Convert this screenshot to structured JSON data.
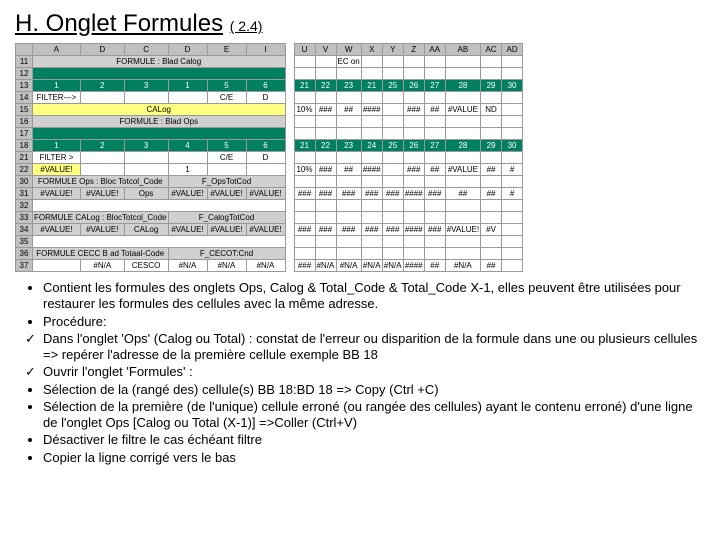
{
  "heading": {
    "main": "H. Onglet Formules",
    "sub": "( 2.4)"
  },
  "colors": {
    "green": "#008060",
    "yellow": "#ffff80",
    "gray": "#d0d0d0",
    "border": "#999999",
    "text": "#000000"
  },
  "columns_left": [
    "A",
    "D",
    "C",
    "D",
    "E",
    "I"
  ],
  "columns_right": [
    "U",
    "V",
    "W",
    "X",
    "Y",
    "Z",
    "AA",
    "AB",
    "AC",
    "AD"
  ],
  "rows": [
    {
      "n": "11",
      "l": "FORMULE : Blad Calog",
      "cls": "gray",
      "r": [
        "",
        "",
        "EC on",
        "",
        "",
        "",
        "",
        "",
        "",
        ""
      ]
    },
    {
      "n": "12",
      "l": "",
      "cls": "green",
      "r": [
        "",
        "",
        "",
        "",
        "",
        "",
        "",
        "",
        "",
        ""
      ]
    },
    {
      "n": "13",
      "cells": [
        "1",
        "2",
        "3",
        "1",
        "5",
        "6"
      ],
      "celcls": "green",
      "r": [
        "21",
        "22",
        "23",
        "21",
        "25",
        "26",
        "27",
        "28",
        "29",
        "30"
      ],
      "rcls": "green"
    },
    {
      "n": "14",
      "l": "FILTER--->",
      "sub": [
        "",
        "",
        "",
        "C/E",
        "D"
      ],
      "r": [
        "",
        "",
        "",
        "",
        "",
        "",
        "",
        "",
        "",
        ""
      ]
    },
    {
      "n": "15",
      "l": "CALog",
      "cls": "yellow",
      "r": [
        "10%",
        "###",
        "##",
        "####",
        "",
        "###",
        "##",
        "#VALUE",
        "ND",
        ""
      ]
    },
    {
      "n": "16",
      "l": "FORMULE : Blad Ops",
      "cls": "gray",
      "r": [
        "",
        "",
        "",
        "",
        "",
        "",
        "",
        "",
        "",
        ""
      ]
    },
    {
      "n": "17",
      "l": "",
      "cls": "green",
      "r": [
        "",
        "",
        "",
        "",
        "",
        "",
        "",
        "",
        "",
        ""
      ]
    },
    {
      "n": "18",
      "cells": [
        "1",
        "2",
        "3",
        "4",
        "5",
        "6"
      ],
      "celcls": "green",
      "r": [
        "21",
        "22",
        "23",
        "24",
        "25",
        "26",
        "27",
        "28",
        "29",
        "30"
      ],
      "rcls": "green"
    },
    {
      "n": "21",
      "l": "FILTER >",
      "sub": [
        "",
        "",
        "",
        "C/E",
        "D"
      ],
      "r": [
        "",
        "",
        "",
        "",
        "",
        "",
        "",
        "",
        "",
        ""
      ]
    },
    {
      "n": "22",
      "l": "#VALUE!",
      "cls": "yellow",
      "sub": [
        "",
        "",
        "1",
        "",
        ""
      ],
      "r": [
        "10%",
        "###",
        "##",
        "####",
        "",
        "###",
        "##",
        "#VALUE",
        "##",
        "#"
      ]
    },
    {
      "n": "30",
      "l": "FORMULE Ops : Bloc Totcol_Code",
      "sub3": "F_OpsTotCod",
      "cls": "gray",
      "r": [
        "",
        "",
        "",
        "",
        "",
        "",
        "",
        "",
        "",
        ""
      ]
    },
    {
      "n": "31",
      "cells": [
        "#VALUE!",
        "#VALUE!",
        "Ops",
        "#VALUE!",
        "#VALUE!",
        "#VALUE!"
      ],
      "celcls": "gray",
      "r": [
        "###",
        "###",
        "###",
        "###",
        "###",
        "####",
        "###",
        "##",
        "##",
        "#"
      ]
    },
    {
      "n": "32",
      "l": "",
      "r": [
        "",
        "",
        "",
        "",
        "",
        "",
        "",
        "",
        "",
        ""
      ]
    },
    {
      "n": "33",
      "l": "FORMULE CALog : BlocTotcol_Code",
      "sub3": "F_CalogTotCod",
      "cls": "gray",
      "r": [
        "",
        "",
        "",
        "",
        "",
        "",
        "",
        "",
        "",
        ""
      ]
    },
    {
      "n": "34",
      "cells": [
        "#VALUE!",
        "#VALUE!",
        "CALog",
        "#VALUE!",
        "#VALUE!",
        "#VALUE!"
      ],
      "celcls": "gray",
      "r": [
        "###",
        "###",
        "###",
        "###",
        "###",
        "####",
        "###",
        "#VALUE!",
        "#V",
        ""
      ]
    },
    {
      "n": "35",
      "l": "",
      "r": [
        "",
        "",
        "",
        "",
        "",
        "",
        "",
        "",
        "",
        ""
      ]
    },
    {
      "n": "36",
      "l": "FORMULE CECC B ad Totaal-Code",
      "sub3": "F_CECOT:Cnd",
      "cls": "gray",
      "r": [
        "",
        "",
        "",
        "",
        "",
        "",
        "",
        "",
        "",
        ""
      ]
    },
    {
      "n": "37",
      "cells": [
        "",
        "#N/A",
        "CESCO",
        "#N/A",
        "#N/A",
        "#N/A"
      ],
      "r": [
        "###",
        "#N/A",
        "#N/A",
        "#N/A",
        "#N/A",
        "####",
        "##",
        "#N/A",
        "##",
        ""
      ]
    }
  ],
  "bullets": [
    {
      "t": "dot",
      "text": "Contient les formules des onglets  Ops, Calog & Total_Code & Total_Code X-1, elles peuvent être utilisées pour restaurer les formules des cellules avec la même adresse."
    },
    {
      "t": "dot",
      "text": "Procédure:"
    },
    {
      "t": "check",
      "text": "Dans l'onglet 'Ops' (Calog ou Total) : constat de l'erreur ou disparition de la formule  dans une ou plusieurs cellules  => repérer l'adresse de la première cellule exemple BB 18"
    },
    {
      "t": "check",
      "text": "Ouvrir l'onglet  'Formules' :"
    },
    {
      "t": "dot",
      "text": "Sélection de la (rangé des) cellule(s) BB 18:BD 18 => Copy (Ctrl +C)"
    },
    {
      "t": "dot",
      "text": "Sélection de la première (de l'unique) cellule erroné (ou rangée des cellules) ayant le contenu erroné) d'une ligne de l'onglet Ops [Calog ou Total (X-1)]  =>Coller (Ctrl+V)"
    },
    {
      "t": "dot",
      "text": "Désactiver le filtre le cas échéant filtre"
    },
    {
      "t": "dot",
      "text": "Copier la ligne corrigé vers le bas"
    }
  ]
}
